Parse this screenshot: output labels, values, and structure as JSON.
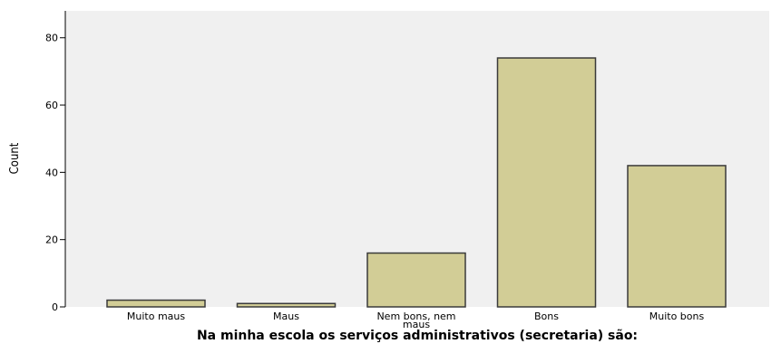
{
  "chart_data": {
    "type": "bar",
    "categories": [
      "Muito maus",
      "Maus",
      "Nem bons, nem maus",
      "Bons",
      "Muito bons"
    ],
    "category_label_lines": [
      [
        "Muito maus"
      ],
      [
        "Maus"
      ],
      [
        "Nem bons, nem",
        "maus"
      ],
      [
        "Bons"
      ],
      [
        "Muito bons"
      ]
    ],
    "values": [
      2,
      1,
      16,
      74,
      42
    ],
    "xlabel": "Na minha escola os serviços administrativos (secretaria) são:",
    "ylabel": "Count",
    "ylim": [
      0,
      88
    ],
    "yticks": [
      0,
      20,
      40,
      60,
      80
    ],
    "grid": false,
    "colors": {
      "bar_fill": "#d2cd96",
      "bar_stroke": "#3a3a3a",
      "plot_background": "#f0f0f0",
      "axis": "#000000"
    }
  }
}
